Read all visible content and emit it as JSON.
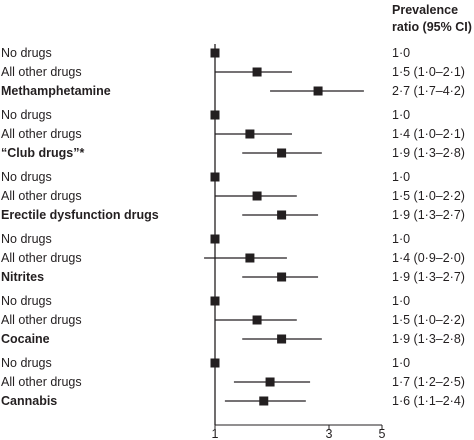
{
  "header": {
    "line1": "Prevalence",
    "line2": "ratio (95% CI)"
  },
  "chart_data": {
    "type": "forest",
    "xscale": "log",
    "xlim": [
      1,
      5
    ],
    "xticks": [
      1,
      3,
      5
    ],
    "reference_value": 1,
    "rows": [
      {
        "label": "No drugs",
        "bold": false,
        "estimate": 1.0,
        "lower": null,
        "upper": null,
        "ci_text": "1·0"
      },
      {
        "label": "All other drugs",
        "bold": false,
        "estimate": 1.5,
        "lower": 1.0,
        "upper": 2.1,
        "ci_text": "1·5 (1·0–2·1)"
      },
      {
        "label": "Methamphetamine",
        "bold": true,
        "estimate": 2.7,
        "lower": 1.7,
        "upper": 4.2,
        "ci_text": "2·7 (1·7–4·2)"
      },
      {
        "label": "No drugs",
        "bold": false,
        "estimate": 1.0,
        "lower": null,
        "upper": null,
        "ci_text": "1·0"
      },
      {
        "label": "All other drugs",
        "bold": false,
        "estimate": 1.4,
        "lower": 1.0,
        "upper": 2.1,
        "ci_text": "1·4 (1·0–2·1)"
      },
      {
        "label": "“Club drugs”*",
        "bold": true,
        "estimate": 1.9,
        "lower": 1.3,
        "upper": 2.8,
        "ci_text": "1·9 (1·3–2·8)"
      },
      {
        "label": "No drugs",
        "bold": false,
        "estimate": 1.0,
        "lower": null,
        "upper": null,
        "ci_text": "1·0"
      },
      {
        "label": "All other drugs",
        "bold": false,
        "estimate": 1.5,
        "lower": 1.0,
        "upper": 2.2,
        "ci_text": "1·5 (1·0–2·2)"
      },
      {
        "label": "Erectile dysfunction drugs",
        "bold": true,
        "estimate": 1.9,
        "lower": 1.3,
        "upper": 2.7,
        "ci_text": "1·9 (1·3–2·7)"
      },
      {
        "label": "No drugs",
        "bold": false,
        "estimate": 1.0,
        "lower": null,
        "upper": null,
        "ci_text": "1·0"
      },
      {
        "label": "All other drugs",
        "bold": false,
        "estimate": 1.4,
        "lower": 0.9,
        "upper": 2.0,
        "ci_text": "1·4 (0·9–2·0)"
      },
      {
        "label": "Nitrites",
        "bold": true,
        "estimate": 1.9,
        "lower": 1.3,
        "upper": 2.7,
        "ci_text": "1·9 (1·3–2·7)"
      },
      {
        "label": "No drugs",
        "bold": false,
        "estimate": 1.0,
        "lower": null,
        "upper": null,
        "ci_text": "1·0"
      },
      {
        "label": "All other drugs",
        "bold": false,
        "estimate": 1.5,
        "lower": 1.0,
        "upper": 2.2,
        "ci_text": "1·5 (1·0–2·2)"
      },
      {
        "label": "Cocaine",
        "bold": true,
        "estimate": 1.9,
        "lower": 1.3,
        "upper": 2.8,
        "ci_text": "1·9 (1·3–2·8)"
      },
      {
        "label": "No drugs",
        "bold": false,
        "estimate": 1.0,
        "lower": null,
        "upper": null,
        "ci_text": "1·0"
      },
      {
        "label": "All other drugs",
        "bold": false,
        "estimate": 1.7,
        "lower": 1.2,
        "upper": 2.5,
        "ci_text": "1·7 (1·2–2·5)"
      },
      {
        "label": "Cannabis",
        "bold": true,
        "estimate": 1.6,
        "lower": 1.1,
        "upper": 2.4,
        "ci_text": "1·6 (1·1–2·4)"
      }
    ]
  }
}
